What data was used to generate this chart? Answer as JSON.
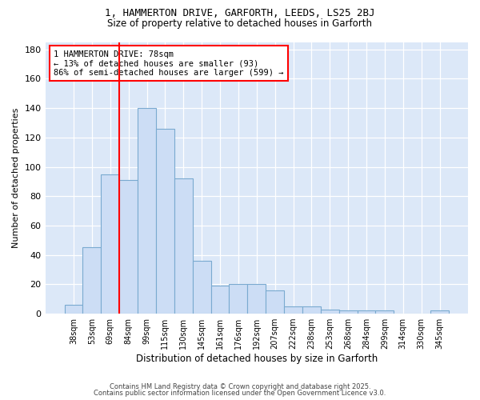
{
  "title": "1, HAMMERTON DRIVE, GARFORTH, LEEDS, LS25 2BJ",
  "subtitle": "Size of property relative to detached houses in Garforth",
  "xlabel": "Distribution of detached houses by size in Garforth",
  "ylabel": "Number of detached properties",
  "categories": [
    "38sqm",
    "53sqm",
    "69sqm",
    "84sqm",
    "99sqm",
    "115sqm",
    "130sqm",
    "145sqm",
    "161sqm",
    "176sqm",
    "192sqm",
    "207sqm",
    "222sqm",
    "238sqm",
    "253sqm",
    "268sqm",
    "284sqm",
    "299sqm",
    "314sqm",
    "330sqm",
    "345sqm"
  ],
  "values": [
    6,
    45,
    95,
    91,
    140,
    126,
    92,
    36,
    19,
    20,
    20,
    16,
    5,
    5,
    3,
    2,
    2,
    2,
    0,
    0,
    2
  ],
  "bar_color": "#ccddf5",
  "bar_edge_color": "#7aaad0",
  "vline_x": 2.5,
  "vline_color": "red",
  "annotation_text": "1 HAMMERTON DRIVE: 78sqm\n← 13% of detached houses are smaller (93)\n86% of semi-detached houses are larger (599) →",
  "ylim": [
    0,
    185
  ],
  "yticks": [
    0,
    20,
    40,
    60,
    80,
    100,
    120,
    140,
    160,
    180
  ],
  "fig_bg_color": "#ffffff",
  "plot_bg_color": "#dce8f8",
  "grid_color": "#ffffff",
  "footer_line1": "Contains HM Land Registry data © Crown copyright and database right 2025.",
  "footer_line2": "Contains public sector information licensed under the Open Government Licence v3.0."
}
